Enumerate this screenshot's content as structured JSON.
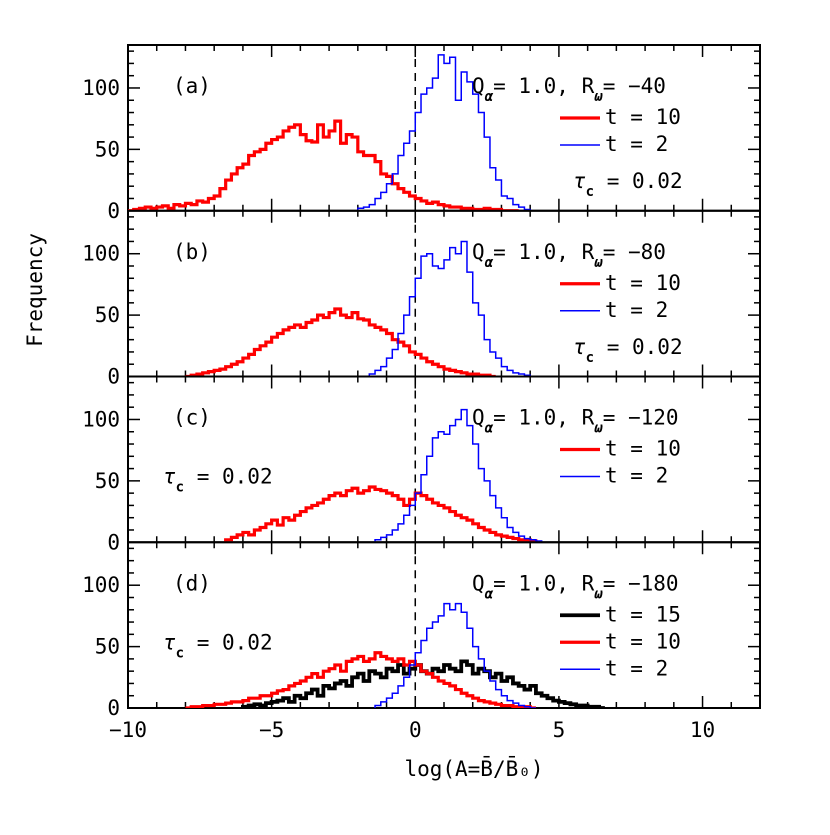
{
  "chart_data": {
    "type": "histogram-stack",
    "xlabel": "log(A=B̄/B̄₀)",
    "ylabel": "Frequency",
    "xlim": [
      -10,
      12
    ],
    "ylim": [
      0,
      135
    ],
    "xticks": [
      -10,
      -5,
      0,
      5,
      10
    ],
    "xtick_labels": [
      "−10",
      "−5",
      "0",
      "5",
      "10"
    ],
    "yticks": [
      0,
      50,
      100
    ],
    "ytick_labels": [
      "0",
      "50",
      "100"
    ],
    "reference_line_x": 0,
    "panels": [
      {
        "label": "(a)",
        "params": "Qα= 1.0, Rω= −40",
        "params_parts": {
          "q_sym": "Q",
          "q_sub": "α",
          "q_val": "= 1.0,",
          "r_sym": "R",
          "r_sub": "ω",
          "r_val": "= −40"
        },
        "tau": {
          "sym": "τ",
          "sub": "c",
          "val": "= 0.02",
          "position": "right"
        },
        "series": [
          {
            "name": "t = 10",
            "color": "#ff0000",
            "width": 3.2,
            "bin_width": 0.2,
            "bin_start": -10.0,
            "values": [
              0,
              1,
              2,
              3,
              2,
              3,
              4,
              2,
              5,
              4,
              6,
              5,
              8,
              7,
              10,
              12,
              18,
              25,
              30,
              35,
              38,
              45,
              48,
              50,
              55,
              58,
              60,
              65,
              68,
              70,
              62,
              57,
              56,
              70,
              60,
              65,
              73,
              55,
              62,
              60,
              48,
              45,
              45,
              40,
              30,
              28,
              22,
              18,
              15,
              12,
              10,
              8,
              6,
              7,
              5,
              4,
              3,
              3,
              2,
              2,
              1,
              1,
              2,
              1,
              1,
              0,
              0,
              0
            ]
          },
          {
            "name": "t = 2",
            "color": "#0000ff",
            "width": 1.5,
            "bin_width": 0.2,
            "bin_start": -2.0,
            "values": [
              2,
              3,
              5,
              10,
              15,
              22,
              30,
              45,
              55,
              65,
              80,
              95,
              100,
              108,
              127,
              120,
              125,
              90,
              113,
              105,
              95,
              80,
              60,
              35,
              25,
              12,
              10,
              5,
              3,
              1,
              0
            ]
          }
        ]
      },
      {
        "label": "(b)",
        "params": "Qα= 1.0, Rω= −80",
        "params_parts": {
          "q_sym": "Q",
          "q_sub": "α",
          "q_val": "= 1.0,",
          "r_sym": "R",
          "r_sub": "ω",
          "r_val": "= −80"
        },
        "tau": {
          "sym": "τ",
          "sub": "c",
          "val": "= 0.02",
          "position": "right"
        },
        "series": [
          {
            "name": "t = 10",
            "color": "#ff0000",
            "width": 3.2,
            "bin_width": 0.2,
            "bin_start": -8.0,
            "values": [
              0,
              1,
              2,
              3,
              4,
              5,
              6,
              8,
              10,
              12,
              15,
              18,
              22,
              25,
              28,
              32,
              35,
              38,
              40,
              42,
              40,
              44,
              46,
              50,
              48,
              52,
              55,
              50,
              48,
              52,
              47,
              46,
              42,
              40,
              38,
              35,
              30,
              28,
              25,
              20,
              18,
              15,
              12,
              10,
              8,
              6,
              5,
              4,
              3,
              2,
              2,
              1,
              1,
              0
            ]
          },
          {
            "name": "t = 2",
            "color": "#0000ff",
            "width": 1.5,
            "bin_width": 0.2,
            "bin_start": -1.6,
            "values": [
              2,
              5,
              8,
              15,
              22,
              35,
              50,
              65,
              80,
              98,
              100,
              90,
              88,
              95,
              105,
              100,
              110,
              85,
              60,
              50,
              30,
              20,
              15,
              8,
              5,
              3,
              2,
              1,
              0
            ]
          }
        ]
      },
      {
        "label": "(c)",
        "params": "Qα= 1.0, Rω= −120",
        "params_parts": {
          "q_sym": "Q",
          "q_sub": "α",
          "q_val": "= 1.0,",
          "r_sym": "R",
          "r_sub": "ω",
          "r_val": "= −120"
        },
        "tau": {
          "sym": "τ",
          "sub": "c",
          "val": "= 0.02",
          "position": "left"
        },
        "series": [
          {
            "name": "t = 10",
            "color": "#ff0000",
            "width": 3.2,
            "bin_width": 0.2,
            "bin_start": -6.6,
            "values": [
              2,
              4,
              6,
              8,
              6,
              10,
              12,
              15,
              18,
              14,
              20,
              18,
              22,
              25,
              28,
              30,
              32,
              35,
              38,
              40,
              38,
              42,
              44,
              40,
              42,
              45,
              43,
              42,
              40,
              38,
              35,
              30,
              35,
              40,
              38,
              35,
              32,
              30,
              28,
              25,
              22,
              20,
              18,
              15,
              12,
              10,
              8,
              6,
              5,
              4,
              3,
              2,
              2,
              1,
              0
            ]
          },
          {
            "name": "t = 2",
            "color": "#0000ff",
            "width": 1.5,
            "bin_width": 0.2,
            "bin_start": -1.4,
            "values": [
              2,
              4,
              6,
              10,
              15,
              22,
              30,
              40,
              55,
              70,
              85,
              90,
              88,
              95,
              100,
              108,
              95,
              80,
              60,
              50,
              38,
              28,
              20,
              12,
              8,
              5,
              3,
              2,
              1,
              0
            ]
          }
        ]
      },
      {
        "label": "(d)",
        "params": "Qα= 1.0, Rω= −180",
        "params_parts": {
          "q_sym": "Q",
          "q_sub": "α",
          "q_val": "= 1.0,",
          "r_sym": "R",
          "r_sub": "ω",
          "r_val": "= −180"
        },
        "tau": {
          "sym": "τ",
          "sub": "c",
          "val": "= 0.02",
          "position": "left"
        },
        "series": [
          {
            "name": "t = 15",
            "color": "#000000",
            "width": 3.8,
            "bin_width": 0.2,
            "bin_start": -6.0,
            "values": [
              1,
              2,
              3,
              2,
              4,
              5,
              6,
              8,
              5,
              10,
              8,
              12,
              15,
              10,
              18,
              16,
              20,
              22,
              18,
              25,
              28,
              22,
              30,
              28,
              25,
              32,
              30,
              35,
              28,
              32,
              35,
              30,
              28,
              32,
              30,
              35,
              32,
              30,
              38,
              35,
              28,
              32,
              30,
              25,
              28,
              22,
              25,
              20,
              18,
              15,
              18,
              12,
              10,
              8,
              6,
              5,
              4,
              3,
              2,
              2,
              1,
              1,
              0
            ]
          },
          {
            "name": "t = 10",
            "color": "#ff0000",
            "width": 3.2,
            "bin_width": 0.2,
            "bin_start": -8.0,
            "values": [
              0,
              1,
              1,
              2,
              2,
              3,
              3,
              4,
              5,
              5,
              6,
              8,
              8,
              10,
              10,
              12,
              14,
              15,
              18,
              20,
              22,
              25,
              28,
              25,
              30,
              32,
              35,
              30,
              38,
              40,
              42,
              38,
              40,
              45,
              42,
              40,
              38,
              40,
              35,
              38,
              35,
              30,
              28,
              25,
              22,
              20,
              18,
              15,
              12,
              10,
              8,
              6,
              5,
              4,
              3,
              2,
              2,
              1,
              1,
              1,
              0
            ]
          },
          {
            "name": "t = 2",
            "color": "#0000ff",
            "width": 1.5,
            "bin_width": 0.2,
            "bin_start": -1.4,
            "values": [
              2,
              5,
              8,
              12,
              18,
              25,
              35,
              45,
              55,
              65,
              70,
              75,
              85,
              80,
              85,
              78,
              65,
              50,
              40,
              30,
              22,
              15,
              10,
              6,
              4,
              2,
              1,
              0
            ]
          }
        ]
      }
    ]
  }
}
